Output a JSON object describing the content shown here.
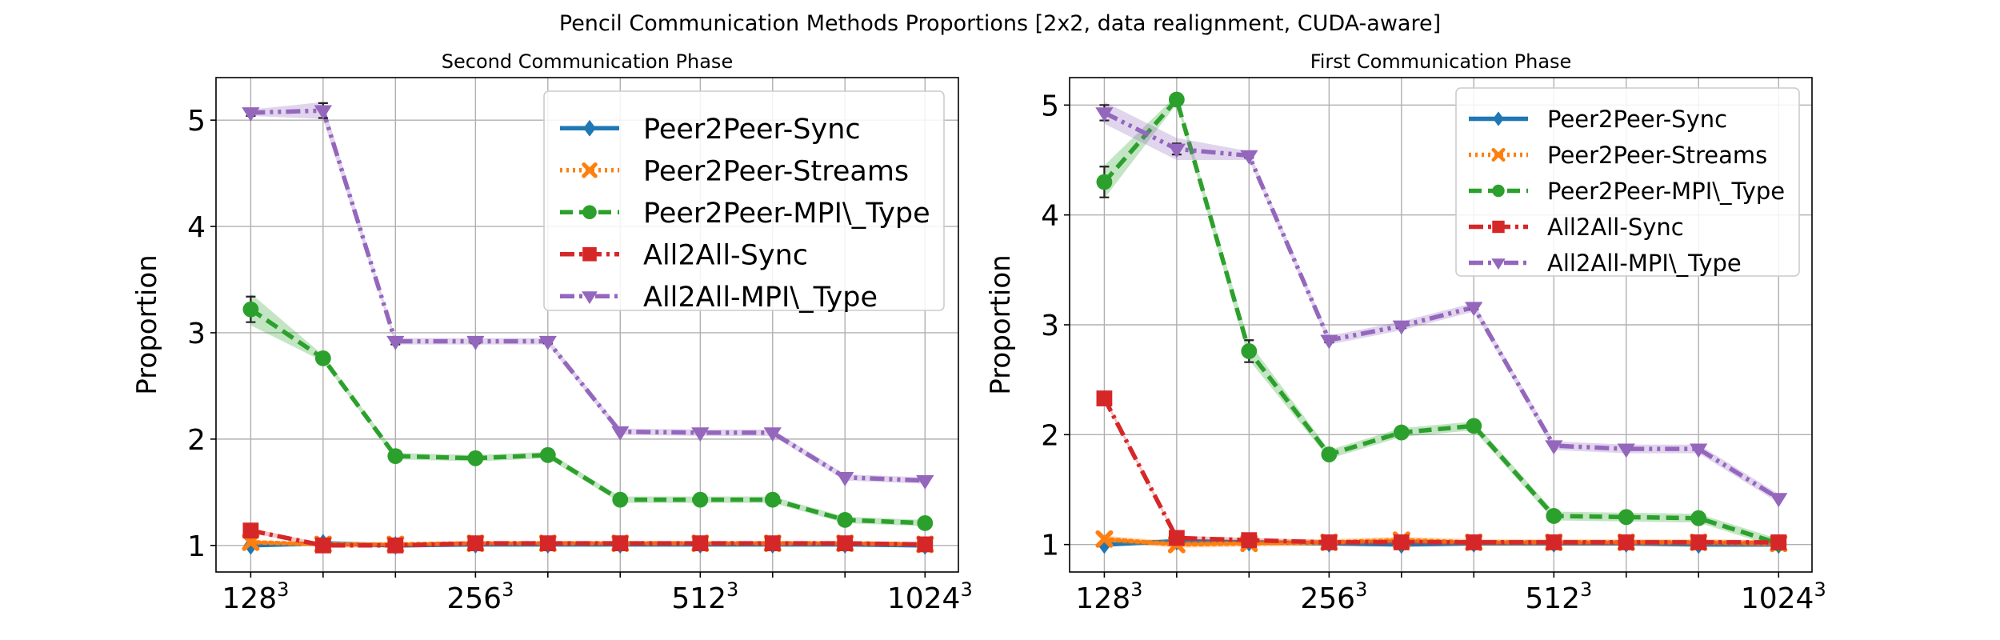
{
  "figure": {
    "suptitle": "Pencil Communication Methods Proportions [2x2, data realignment, CUDA-aware]"
  },
  "chart_data": [
    {
      "type": "line",
      "title": "Second Communication Phase",
      "ylabel": "Proportion",
      "xlabel": "",
      "x": [
        128,
        160,
        200,
        256,
        320,
        400,
        512,
        640,
        800,
        1024
      ],
      "x_ticks": [
        {
          "value": 128,
          "label": "128",
          "exp": "3"
        },
        {
          "value": 256,
          "label": "256",
          "exp": "3"
        },
        {
          "value": 512,
          "label": "512",
          "exp": "3"
        },
        {
          "value": 1024,
          "label": "1024",
          "exp": "3"
        }
      ],
      "x_scale": "log2",
      "xlim": [
        115,
        1135
      ],
      "ylim": [
        0.75,
        5.4
      ],
      "y_ticks": [
        1,
        2,
        3,
        4,
        5
      ],
      "grid": true,
      "legend": "top-right",
      "legend_size": "large",
      "series": [
        {
          "name": "Peer2Peer-Sync",
          "color": "#1f77b4",
          "marker": "diamond",
          "dash": "solid",
          "values": [
            1.0,
            1.02,
            1.0,
            1.01,
            1.01,
            1.01,
            1.01,
            1.01,
            1.01,
            1.0
          ],
          "band": 0.02
        },
        {
          "name": "Peer2Peer-Streams",
          "color": "#ff7f0e",
          "marker": "x",
          "dash": "dotted",
          "values": [
            1.03,
            1.01,
            1.01,
            1.02,
            1.02,
            1.02,
            1.02,
            1.02,
            1.02,
            1.01
          ],
          "band": 0.02
        },
        {
          "name": "Peer2Peer-MPI\\_Type",
          "color": "#2ca02c",
          "marker": "circle",
          "dash": "dashed",
          "values": [
            3.22,
            2.76,
            1.84,
            1.82,
            1.85,
            1.43,
            1.43,
            1.43,
            1.24,
            1.21
          ],
          "band": 0.03,
          "errors": [
            0.12,
            0.02,
            0.02,
            0.02,
            0.02,
            0.01,
            0.01,
            0.01,
            0.01,
            0.01
          ],
          "band_points": {
            "0": 0.15
          }
        },
        {
          "name": "All2All-Sync",
          "color": "#d62728",
          "marker": "square",
          "dash": "dashdot",
          "values": [
            1.14,
            1.0,
            1.0,
            1.02,
            1.02,
            1.02,
            1.02,
            1.02,
            1.02,
            1.01
          ],
          "band": 0.02
        },
        {
          "name": "All2All-MPI\\_Type",
          "color": "#9467bd",
          "marker": "triangle-down",
          "dash": "dashdotdot",
          "values": [
            5.07,
            5.09,
            2.92,
            2.92,
            2.92,
            2.07,
            2.06,
            2.06,
            1.64,
            1.61
          ],
          "band": 0.03,
          "errors": [
            0.03,
            0.07,
            0.03,
            0.02,
            0.02,
            0.01,
            0.01,
            0.01,
            0.01,
            0.01
          ],
          "band_points": {
            "1": 0.08
          }
        }
      ]
    },
    {
      "type": "line",
      "title": "First Communication Phase",
      "ylabel": "Proportion",
      "xlabel": "",
      "x": [
        128,
        160,
        200,
        256,
        320,
        400,
        512,
        640,
        800,
        1024
      ],
      "x_ticks": [
        {
          "value": 128,
          "label": "128",
          "exp": "3"
        },
        {
          "value": 256,
          "label": "256",
          "exp": "3"
        },
        {
          "value": 512,
          "label": "512",
          "exp": "3"
        },
        {
          "value": 1024,
          "label": "1024",
          "exp": "3"
        }
      ],
      "x_scale": "log2",
      "xlim": [
        115,
        1135
      ],
      "ylim": [
        0.75,
        5.25
      ],
      "y_ticks": [
        1,
        2,
        3,
        4,
        5
      ],
      "grid": true,
      "legend": "top-right",
      "legend_size": "small",
      "series": [
        {
          "name": "Peer2Peer-Sync",
          "color": "#1f77b4",
          "marker": "diamond",
          "dash": "solid",
          "values": [
            1.0,
            1.03,
            1.02,
            1.01,
            1.0,
            1.01,
            1.01,
            1.01,
            1.0,
            1.0
          ],
          "band": 0.02
        },
        {
          "name": "Peer2Peer-Streams",
          "color": "#ff7f0e",
          "marker": "x",
          "dash": "dotted",
          "values": [
            1.05,
            1.0,
            1.01,
            1.02,
            1.04,
            1.02,
            1.02,
            1.02,
            1.02,
            1.01
          ],
          "band": 0.03
        },
        {
          "name": "Peer2Peer-MPI\\_Type",
          "color": "#2ca02c",
          "marker": "circle",
          "dash": "dashed",
          "values": [
            4.3,
            5.05,
            2.76,
            1.82,
            2.02,
            2.08,
            1.26,
            1.25,
            1.24,
            1.01
          ],
          "band": 0.04,
          "errors": [
            0.14,
            0.04,
            0.1,
            0.02,
            0.02,
            0.02,
            0.01,
            0.01,
            0.01,
            0.01
          ],
          "band_points": {
            "0": 0.15,
            "2": 0.08
          }
        },
        {
          "name": "All2All-Sync",
          "color": "#d62728",
          "marker": "square",
          "dash": "dashdot",
          "values": [
            2.33,
            1.06,
            1.04,
            1.02,
            1.02,
            1.02,
            1.02,
            1.02,
            1.02,
            1.02
          ],
          "band": 0.02,
          "errors": [
            0.05,
            0.01,
            0.01,
            0.01,
            0.01,
            0.01,
            0.01,
            0.01,
            0.01,
            0.01
          ]
        },
        {
          "name": "All2All-MPI\\_Type",
          "color": "#9467bd",
          "marker": "triangle-down",
          "dash": "dashdotdot",
          "values": [
            4.93,
            4.6,
            4.54,
            2.86,
            2.99,
            3.16,
            1.9,
            1.87,
            1.87,
            1.42
          ],
          "band": 0.04,
          "errors": [
            0.07,
            0.05,
            0.02,
            0.02,
            0.02,
            0.02,
            0.01,
            0.01,
            0.01,
            0.01
          ],
          "band_points": {
            "0": 0.1,
            "1": 0.1
          }
        }
      ]
    }
  ]
}
